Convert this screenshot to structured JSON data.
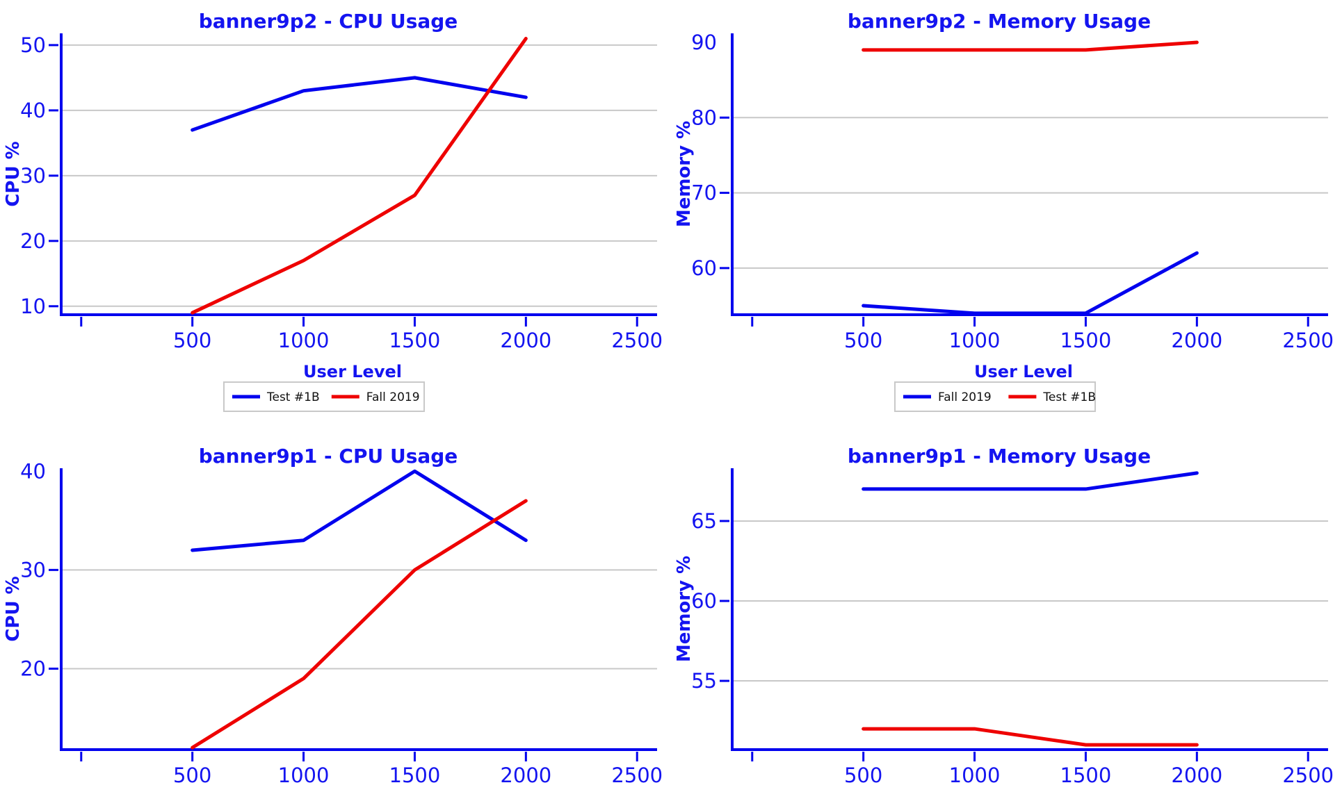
{
  "page": {
    "background": "#ffffff"
  },
  "colors": {
    "blue_line": "#0202ee",
    "red_line": "#ee0000",
    "axis_blue": "#0202ee",
    "text_blue": "#1414f0",
    "grid_gray": "#c8c8c8",
    "legend_border": "#c9c9c9",
    "legend_text": "#111111",
    "background": "#ffffff"
  },
  "chart_data": [
    {
      "id": "banner9p2-cpu",
      "type": "line",
      "title": "banner9p2 - CPU Usage",
      "ylabel": "CPU %",
      "xlabel": "User Level",
      "xlim": [
        -90,
        2590
      ],
      "ylim": [
        8.7,
        51.8
      ],
      "x": [
        500,
        1000,
        1500,
        2000
      ],
      "xtick_values": [
        0,
        500,
        1000,
        1500,
        2000,
        2500
      ],
      "xtick_labels": [
        "",
        "500",
        "1000",
        "1500",
        "2000",
        "2500"
      ],
      "yticks": [
        10,
        20,
        30,
        40,
        50
      ],
      "ytick_dash": [
        10,
        20,
        30,
        40,
        50
      ],
      "ytick_grid": [
        10,
        20,
        30,
        40,
        50
      ],
      "grid": true,
      "series": [
        {
          "name": "Test #1B",
          "color_key": "blue_line",
          "values": [
            37,
            43,
            45,
            42
          ]
        },
        {
          "name": "Fall 2019",
          "color_key": "red_line",
          "values": [
            9,
            17,
            27,
            51
          ]
        }
      ],
      "legend": {
        "visible": true,
        "position": "below",
        "entries": [
          {
            "label": "Test #1B",
            "color_key": "blue_line"
          },
          {
            "label": "Fall 2019",
            "color_key": "red_line"
          }
        ]
      }
    },
    {
      "id": "banner9p2-memory",
      "type": "line",
      "title": "banner9p2 - Memory Usage",
      "ylabel": "Memory %",
      "xlabel": "User Level",
      "xlim": [
        -90,
        2590
      ],
      "ylim": [
        53.8,
        91.2
      ],
      "x": [
        500,
        1000,
        1500,
        2000
      ],
      "xtick_values": [
        0,
        500,
        1000,
        1500,
        2000,
        2500
      ],
      "xtick_labels": [
        "",
        "500",
        "1000",
        "1500",
        "2000",
        "2500"
      ],
      "yticks": [
        60,
        70,
        80,
        90
      ],
      "ytick_dash": [
        60,
        70,
        80
      ],
      "ytick_grid": [
        60,
        70,
        80
      ],
      "grid": true,
      "series": [
        {
          "name": "Fall 2019",
          "color_key": "blue_line",
          "values": [
            55,
            54,
            54,
            62
          ]
        },
        {
          "name": "Test #1B",
          "color_key": "red_line",
          "values": [
            89,
            89,
            89,
            90
          ]
        }
      ],
      "legend": {
        "visible": true,
        "position": "below",
        "entries": [
          {
            "label": "Fall 2019",
            "color_key": "blue_line"
          },
          {
            "label": "Test #1B",
            "color_key": "red_line"
          }
        ]
      }
    },
    {
      "id": "banner9p1-cpu",
      "type": "line",
      "title": "banner9p1 - CPU Usage",
      "ylabel": "CPU %",
      "xlabel": "",
      "xlim": [
        -90,
        2590
      ],
      "ylim": [
        11.8,
        40.3
      ],
      "x": [
        500,
        1000,
        1500,
        2000
      ],
      "xtick_values": [
        0,
        500,
        1000,
        1500,
        2000,
        2500
      ],
      "xtick_labels": [
        "",
        "500",
        "1000",
        "1500",
        "2000",
        "2500"
      ],
      "yticks": [
        20,
        30,
        40
      ],
      "ytick_dash": [
        20,
        30
      ],
      "ytick_grid": [
        20,
        30
      ],
      "grid": true,
      "series": [
        {
          "name": "Test #1B",
          "color_key": "blue_line",
          "values": [
            32,
            33,
            40,
            33
          ]
        },
        {
          "name": "Fall 2019",
          "color_key": "red_line",
          "values": [
            12,
            19,
            30,
            37
          ]
        }
      ],
      "legend": {
        "visible": false,
        "position": "below",
        "entries": []
      }
    },
    {
      "id": "banner9p1-memory",
      "type": "line",
      "title": "banner9p1 - Memory Usage",
      "ylabel": "Memory %",
      "xlabel": "",
      "xlim": [
        -90,
        2590
      ],
      "ylim": [
        50.7,
        68.3
      ],
      "x": [
        500,
        1000,
        1500,
        2000
      ],
      "xtick_values": [
        0,
        500,
        1000,
        1500,
        2000,
        2500
      ],
      "xtick_labels": [
        "",
        "500",
        "1000",
        "1500",
        "2000",
        "2500"
      ],
      "yticks": [
        55,
        60,
        65
      ],
      "ytick_dash": [
        55,
        60,
        65
      ],
      "ytick_grid": [
        55,
        60,
        65
      ],
      "grid": true,
      "series": [
        {
          "name": "Fall 2019",
          "color_key": "blue_line",
          "values": [
            67,
            67,
            67,
            68
          ]
        },
        {
          "name": "Test #1B",
          "color_key": "red_line",
          "values": [
            52,
            52,
            51,
            51
          ]
        }
      ],
      "legend": {
        "visible": false,
        "position": "below",
        "entries": []
      }
    }
  ]
}
